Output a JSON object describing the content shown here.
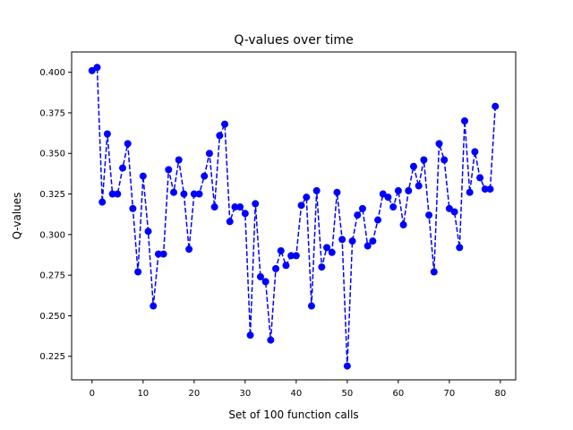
{
  "chart_data": {
    "type": "line",
    "title": "Q-values over time",
    "xlabel": "Set of 100 function calls",
    "ylabel": "Q-values",
    "xlim": [
      -4,
      83
    ],
    "ylim": [
      0.2105,
      0.4125
    ],
    "xticks": [
      0,
      10,
      20,
      30,
      40,
      50,
      60,
      70,
      80
    ],
    "xtick_labels": [
      "0",
      "10",
      "20",
      "30",
      "40",
      "50",
      "60",
      "70",
      "80"
    ],
    "yticks": [
      0.225,
      0.25,
      0.275,
      0.3,
      0.325,
      0.35,
      0.375,
      0.4
    ],
    "ytick_labels": [
      "0.225",
      "0.250",
      "0.275",
      "0.300",
      "0.325",
      "0.350",
      "0.375",
      "0.400"
    ],
    "grid": false,
    "legend": null,
    "series": [
      {
        "color": "#0000ff",
        "line_style": "dashed",
        "marker": "circle",
        "x": [
          0,
          1,
          2,
          3,
          4,
          5,
          6,
          7,
          8,
          9,
          10,
          11,
          12,
          13,
          14,
          15,
          16,
          17,
          18,
          19,
          20,
          21,
          22,
          23,
          24,
          25,
          26,
          27,
          28,
          29,
          30,
          31,
          32,
          33,
          34,
          35,
          36,
          37,
          38,
          39,
          40,
          41,
          42,
          43,
          44,
          45,
          46,
          47,
          48,
          49,
          50,
          51,
          52,
          53,
          54,
          55,
          56,
          57,
          58,
          59,
          60,
          61,
          62,
          63,
          64,
          65,
          66,
          67,
          68,
          69,
          70,
          71,
          72,
          73,
          74,
          75,
          76,
          77,
          78,
          79
        ],
        "values": [
          0.401,
          0.403,
          0.32,
          0.362,
          0.325,
          0.325,
          0.341,
          0.356,
          0.316,
          0.277,
          0.336,
          0.302,
          0.256,
          0.288,
          0.288,
          0.34,
          0.326,
          0.346,
          0.325,
          0.291,
          0.325,
          0.325,
          0.336,
          0.35,
          0.317,
          0.361,
          0.368,
          0.308,
          0.317,
          0.317,
          0.313,
          0.238,
          0.319,
          0.274,
          0.271,
          0.235,
          0.279,
          0.29,
          0.281,
          0.287,
          0.287,
          0.318,
          0.323,
          0.256,
          0.327,
          0.28,
          0.292,
          0.289,
          0.326,
          0.297,
          0.219,
          0.296,
          0.312,
          0.316,
          0.293,
          0.296,
          0.309,
          0.325,
          0.323,
          0.317,
          0.327,
          0.306,
          0.327,
          0.342,
          0.33,
          0.346,
          0.312,
          0.277,
          0.356,
          0.346,
          0.316,
          0.314,
          0.292,
          0.37,
          0.326,
          0.351,
          0.335,
          0.328,
          0.328,
          0.379
        ]
      }
    ]
  }
}
